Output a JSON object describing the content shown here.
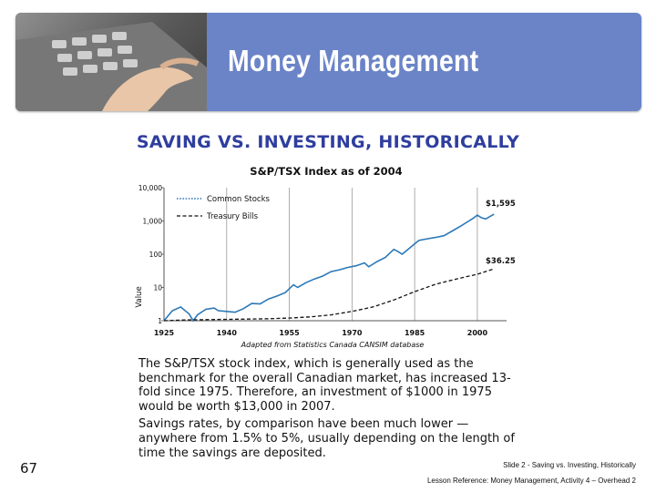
{
  "banner": {
    "title": "Money Management"
  },
  "heading": "SAVING VS. INVESTING, HISTORICALLY",
  "chart_data": {
    "type": "line",
    "title": "S&P/TSX Index as of 2004",
    "ylabel": "Value",
    "xlabel": "",
    "y_scale": "log",
    "ylim": [
      1,
      10000
    ],
    "xlim": [
      1925,
      2007
    ],
    "x_ticks": [
      1925,
      1940,
      1955,
      1970,
      1985,
      2000
    ],
    "x_tick_labels": [
      "1925",
      "1940",
      "1955",
      "1970",
      "1985",
      "2000"
    ],
    "y_ticks": [
      1,
      10,
      100,
      1000,
      10000
    ],
    "y_tick_labels": [
      "1",
      "10",
      "100",
      "1,000",
      "10,000"
    ],
    "source_note": "Adapted from Statistics Canada CANSIM database",
    "legend_position": "top-left",
    "grid": "vertical lines at x ticks",
    "series": [
      {
        "name": "Common Stocks",
        "style": "dotted",
        "color": "#2b78b7",
        "x": [
          1925,
          1927,
          1929,
          1931,
          1932,
          1933,
          1935,
          1937,
          1938,
          1940,
          1942,
          1944,
          1946,
          1948,
          1950,
          1952,
          1954,
          1956,
          1957,
          1959,
          1961,
          1963,
          1965,
          1967,
          1969,
          1971,
          1973,
          1974,
          1976,
          1978,
          1980,
          1981,
          1982,
          1984,
          1986,
          1988,
          1990,
          1992,
          1994,
          1996,
          1998,
          1999,
          2000,
          2001,
          2002,
          2004
        ],
        "y": [
          1,
          2,
          2.6,
          1.6,
          1.0,
          1.5,
          2.2,
          2.4,
          2.0,
          1.9,
          1.8,
          2.3,
          3.3,
          3.2,
          4.5,
          5.5,
          7,
          12,
          10,
          14,
          18,
          22,
          30,
          34,
          40,
          45,
          55,
          42,
          60,
          80,
          140,
          120,
          100,
          160,
          260,
          290,
          320,
          360,
          500,
          700,
          1000,
          1200,
          1500,
          1250,
          1150,
          1595
        ],
        "end_label": "$1,595"
      },
      {
        "name": "Treasury Bills",
        "style": "dashed",
        "color": "#111111",
        "x": [
          1925,
          1930,
          1935,
          1940,
          1945,
          1950,
          1955,
          1960,
          1965,
          1970,
          1975,
          1980,
          1985,
          1990,
          1995,
          2000,
          2004
        ],
        "y": [
          1,
          1.05,
          1.08,
          1.1,
          1.12,
          1.15,
          1.2,
          1.3,
          1.5,
          1.9,
          2.6,
          4.2,
          7.5,
          12.5,
          18,
          25,
          36.25
        ],
        "end_label": "$36.25"
      }
    ]
  },
  "body": {
    "paragraph1": "The S&P/TSX stock index, which is generally used as the benchmark for the overall Canadian market, has increased 13-fold since 1975. Therefore, an investment of $1000 in 1975 would be worth $13,000 in 2007.",
    "paragraph2": "Savings rates, by comparison have been much lower — anywhere from 1.5% to 5%, usually depending on the length of time the savings are deposited."
  },
  "page_number": "67",
  "footer": {
    "slide_ref": "Slide 2 - Saving vs. Investing, Historically",
    "lesson_ref": "Lesson Reference:  Money Management, Activity 4 – Overhead 2"
  },
  "colors": {
    "banner": "#6b84c8",
    "heading": "#2f3e9e",
    "stocks_line": "#2b78b7",
    "bills_line": "#111111"
  }
}
